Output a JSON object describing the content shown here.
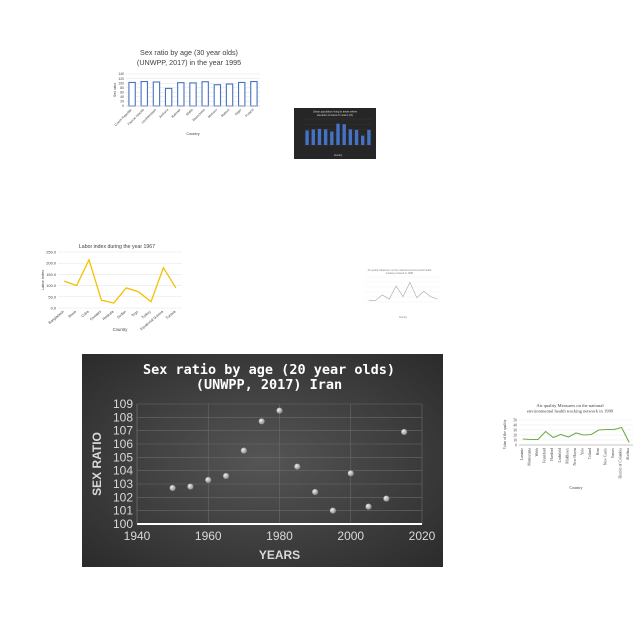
{
  "chart_data": [
    {
      "id": "c1",
      "type": "bar",
      "title_lines": [
        "Sex ratio by age (30 year olds)",
        "(UNWPP, 2017) in the year 1995"
      ],
      "xlabel": "Country",
      "ylabel": "Sex ratio",
      "categories": [
        "Czech Republic",
        "Faeroe Islands",
        "Liechtenstein",
        "Andorra",
        "Bahrain",
        "Malta",
        "Macedonia",
        "Monaco",
        "Malawi",
        "Niger",
        "Poland"
      ],
      "values": [
        103,
        107,
        105,
        77,
        102,
        101,
        106,
        93,
        96,
        103,
        107
      ],
      "yticks": [
        "140",
        "120",
        "100",
        "80",
        "60",
        "40",
        "20",
        "0"
      ],
      "ylim": [
        0,
        140
      ],
      "colors": {
        "bar": "#4472c4",
        "bar_fill": "#ffffff",
        "text": "#404040",
        "grid": "#d9d9d9"
      }
    },
    {
      "id": "c2",
      "type": "bar",
      "title_lines": [
        "Urban population living in areas where",
        "elevation is below 5 meters (%)"
      ],
      "xlabel": "Country",
      "values": [
        28,
        30,
        31,
        30,
        26,
        41,
        40,
        30,
        29,
        18,
        29
      ],
      "ylim": [
        0,
        50
      ],
      "colors": {
        "bg": "#262626",
        "bar": "#4472c4",
        "text": "#d9d9d9",
        "grid": "#404040"
      }
    },
    {
      "id": "c3",
      "type": "line",
      "title": "Labor index during the year 1967",
      "xlabel": "Country",
      "ylabel": "Labor index",
      "categories": [
        "Bangladesh",
        "Benin",
        "Cuba",
        "Eswatini",
        "Rwanda",
        "Sudan",
        "Togo",
        "Turkey",
        "Equatorial Guinea",
        "Tunisia"
      ],
      "values": [
        120,
        100,
        215,
        35,
        22,
        90,
        72,
        28,
        180,
        90
      ],
      "yticks": [
        "250.0",
        "200.0",
        "150.0",
        "100.0",
        "50.0",
        "0.0"
      ],
      "ylim": [
        0,
        250
      ],
      "colors": {
        "line": "#f2c000",
        "text": "#404040",
        "grid": "#d9d9d9"
      }
    },
    {
      "id": "c4",
      "type": "line",
      "title_lines": [
        "Air quality Measures on the national environmental health",
        "tracking network in 1998"
      ],
      "xlabel": "Country",
      "values": [
        5,
        4,
        20,
        8,
        45,
        15,
        55,
        12,
        30,
        15,
        8
      ],
      "ylim": [
        0,
        70
      ],
      "colors": {
        "line": "#a6a6a6",
        "text": "#808080",
        "grid": "#e7e7e7"
      }
    },
    {
      "id": "c5",
      "type": "scatter",
      "title_lines": [
        "Sex ratio by age (20 year olds)",
        "(UNWPP, 2017) Iran"
      ],
      "xlabel": "YEARS",
      "ylabel": "SEX RATIO",
      "x": [
        1950,
        1955,
        1960,
        1965,
        1970,
        1975,
        1980,
        1985,
        1990,
        1995,
        2000,
        2005,
        2010,
        2015
      ],
      "y": [
        102.7,
        102.8,
        103.3,
        103.6,
        105.5,
        107.7,
        108.5,
        104.3,
        102.4,
        101.0,
        103.8,
        101.3,
        101.9,
        106.9
      ],
      "xticks": [
        "1940",
        "1960",
        "1980",
        "2000",
        "2020"
      ],
      "yticks": [
        "109",
        "108",
        "107",
        "106",
        "105",
        "104",
        "103",
        "102",
        "101",
        "100"
      ],
      "xlim": [
        1940,
        2020
      ],
      "ylim": [
        100,
        109
      ],
      "grid": true,
      "colors": {
        "bg_center": "#555555",
        "bg_edge": "#2b2b2b",
        "point": "#bfbfbf",
        "text": "#d9d9d9",
        "title": "#ffffff",
        "grid": "#6a6a6a",
        "axis": "#ffffff"
      }
    },
    {
      "id": "c6",
      "type": "line",
      "title_lines": [
        "Air quality Measures on the national",
        "environmental health tracking network in 1999"
      ],
      "xlabel": "Country",
      "ylabel": "Value of the quality",
      "categories": [
        "Laramie",
        "Montezuma",
        "Webb",
        "Frankford",
        "Hartford",
        "Litchfield",
        "Middlesex",
        "New Haven",
        "Yolo",
        "Tolland",
        "Kent",
        "New Castle",
        "Sussex",
        "District of Columbia",
        "Alachua"
      ],
      "values": [
        12,
        11,
        11,
        27,
        15,
        21,
        16,
        24,
        20,
        21,
        30,
        31,
        31,
        35,
        5
      ],
      "yticks": [
        "50",
        "40",
        "30",
        "20",
        "10",
        "0"
      ],
      "ylim": [
        0,
        50
      ],
      "colors": {
        "line": "#70ad47",
        "text": "#404040",
        "grid": "#d9d9d9"
      }
    }
  ]
}
